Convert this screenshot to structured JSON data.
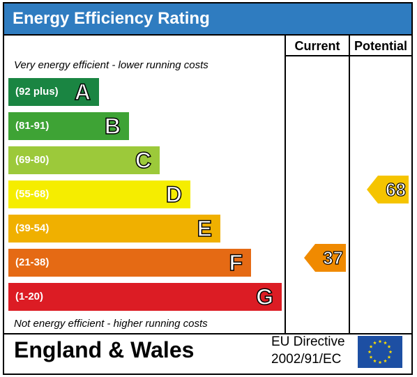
{
  "title": "Energy Efficiency Rating",
  "columns": {
    "current": "Current",
    "potential": "Potential"
  },
  "notes": {
    "top": "Very energy efficient - lower running costs",
    "bottom": "Not energy efficient - higher running costs"
  },
  "footer": {
    "country": "England & Wales",
    "directive_line1": "EU Directive",
    "directive_line2": "2002/91/EC"
  },
  "colors": {
    "title_bg": "#2f7cc0",
    "eu_flag_bg": "#1d4fa3",
    "eu_star": "#ffe100"
  },
  "chart_data": {
    "type": "bar",
    "categories": [
      "A",
      "B",
      "C",
      "D",
      "E",
      "F",
      "G"
    ],
    "ranges": [
      "(92 plus)",
      "(81-91)",
      "(69-80)",
      "(55-68)",
      "(39-54)",
      "(21-38)",
      "(1-20)"
    ],
    "band_colors": [
      "#1a8542",
      "#3ea335",
      "#9cc93a",
      "#f5ed00",
      "#f0b000",
      "#e56a14",
      "#dc1c24"
    ],
    "current": {
      "value": 37,
      "band": "F",
      "color": "#f08a00"
    },
    "potential": {
      "value": 68,
      "band": "D",
      "color": "#f5c400"
    }
  }
}
